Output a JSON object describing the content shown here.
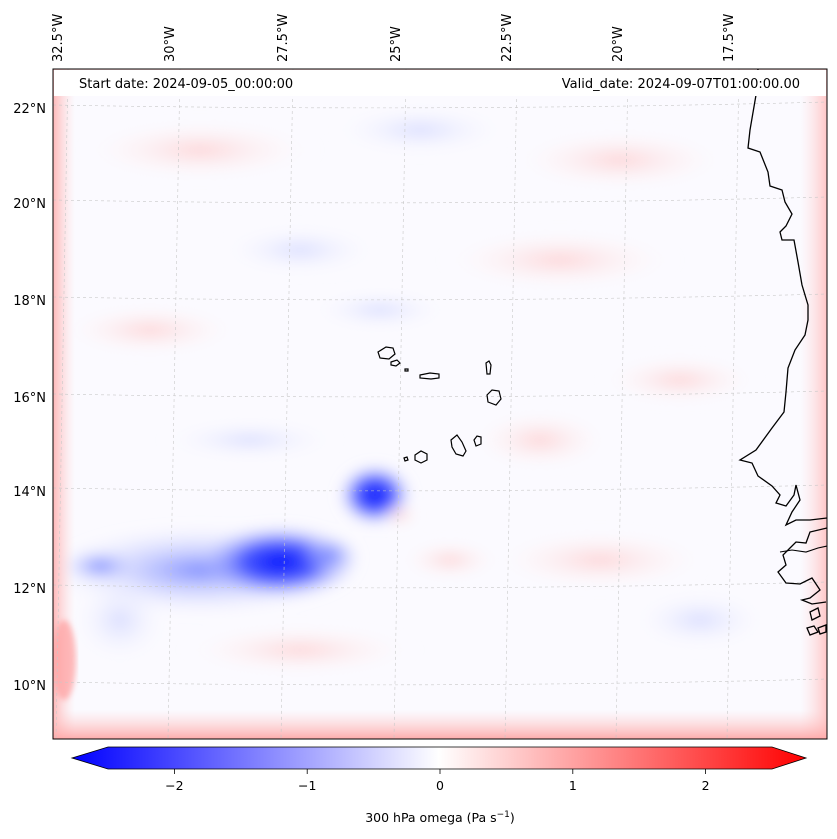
{
  "header": {
    "start_date": "Start date: 2024-09-05_00:00:00",
    "valid_date": "Valid_date: 2024-09-07T01:00:00.00"
  },
  "map": {
    "longitude_labels": [
      "32.5°W",
      "30°W",
      "27.5°W",
      "25°W",
      "22.5°W",
      "20°W",
      "17.5°W"
    ],
    "latitude_labels": [
      "22°N",
      "20°N",
      "18°N",
      "16°N",
      "14°N",
      "12°N",
      "10°N"
    ],
    "gridlines": true,
    "field": "300 hPa omega",
    "features": [
      "Cabo Verde islands",
      "West African coastline (Senegal, Gambia, Guinea-Bissau)"
    ],
    "notable_patterns": [
      {
        "description": "strong negative omega (ascent) band",
        "approx_lat": 12.3,
        "approx_lon": -27.5,
        "value": -2.5
      },
      {
        "description": "negative omega cell",
        "approx_lat": 13.8,
        "approx_lon": -24.5,
        "value": -2.0
      },
      {
        "description": "positive omega boundary frame",
        "value": 1.0
      }
    ]
  },
  "colorbar": {
    "ticks": [
      "−2",
      "−1",
      "0",
      "1",
      "2"
    ],
    "tick_values": [
      -2,
      -1,
      0,
      1,
      2
    ],
    "range": [
      -2.75,
      2.75
    ],
    "label_main": "300 hPa omega (Pa s",
    "label_exp": "−1",
    "label_end": ")",
    "colormap": "bwr",
    "color_low": "#0000ff",
    "color_mid": "#ffffff",
    "color_high": "#ff0000"
  }
}
